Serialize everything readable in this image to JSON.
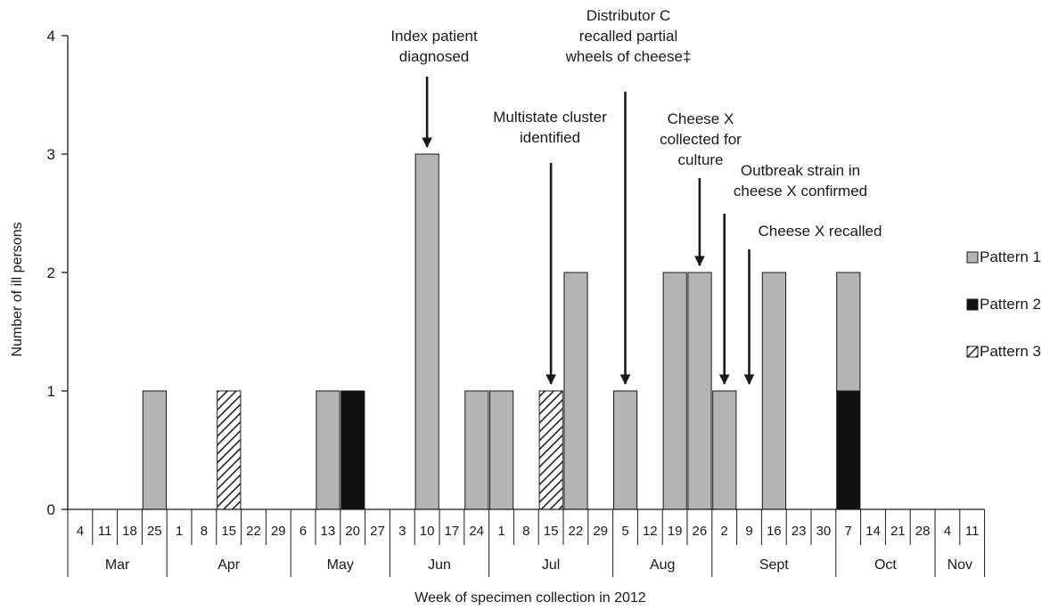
{
  "chart_data": {
    "type": "bar",
    "stacked": true,
    "xlabel": "Week of specimen collection in 2012",
    "ylabel": "Number of ill persons",
    "ylim": [
      0,
      4
    ],
    "yticks": [
      "0",
      "1",
      "2",
      "3",
      "4"
    ],
    "grid": false,
    "legend_position": "right",
    "categories": [
      "4",
      "11",
      "18",
      "25",
      "1",
      "8",
      "15",
      "22",
      "29",
      "6",
      "13",
      "20",
      "27",
      "3",
      "10",
      "17",
      "24",
      "1",
      "8",
      "15",
      "22",
      "29",
      "5",
      "12",
      "19",
      "26",
      "2",
      "9",
      "16",
      "23",
      "30",
      "7",
      "14",
      "21",
      "28",
      "4",
      "11"
    ],
    "months": [
      {
        "label": "Mar",
        "span": 4
      },
      {
        "label": "Apr",
        "span": 5
      },
      {
        "label": "May",
        "span": 4
      },
      {
        "label": "Jun",
        "span": 4
      },
      {
        "label": "Jul",
        "span": 5
      },
      {
        "label": "Aug",
        "span": 4
      },
      {
        "label": "Sept",
        "span": 5
      },
      {
        "label": "Oct",
        "span": 4
      },
      {
        "label": "Nov",
        "span": 2
      }
    ],
    "series": [
      {
        "name": "Pattern 2",
        "style": "solid-black",
        "values": [
          0,
          0,
          0,
          0,
          0,
          0,
          0,
          0,
          0,
          0,
          0,
          1,
          0,
          0,
          0,
          0,
          0,
          0,
          0,
          0,
          0,
          0,
          0,
          0,
          0,
          0,
          0,
          0,
          0,
          0,
          0,
          1,
          0,
          0,
          0,
          0,
          0
        ]
      },
      {
        "name": "Pattern 3",
        "style": "hatched",
        "values": [
          0,
          0,
          0,
          0,
          0,
          0,
          1,
          0,
          0,
          0,
          0,
          0,
          0,
          0,
          0,
          0,
          0,
          0,
          0,
          1,
          0,
          0,
          0,
          0,
          0,
          0,
          0,
          0,
          0,
          0,
          0,
          0,
          0,
          0,
          0,
          0,
          0
        ]
      },
      {
        "name": "Pattern 1",
        "style": "gray",
        "values": [
          0,
          0,
          0,
          1,
          0,
          0,
          0,
          0,
          0,
          0,
          1,
          0,
          0,
          0,
          3,
          0,
          1,
          1,
          0,
          0,
          2,
          0,
          1,
          0,
          2,
          2,
          1,
          0,
          2,
          0,
          0,
          1,
          0,
          0,
          0,
          0,
          0
        ]
      }
    ],
    "legend_order": [
      "Pattern 1",
      "Pattern 2",
      "Pattern 3"
    ],
    "annotations": [
      {
        "lines": [
          "Index patient",
          "diagnosed"
        ],
        "week_index": 14,
        "arrow_to_value": 3
      },
      {
        "lines": [
          "Multistate cluster",
          "identified"
        ],
        "week_index": 19,
        "arrow_to_value": 1
      },
      {
        "lines": [
          "Distributor C",
          "recalled partial",
          "wheels of cheese‡"
        ],
        "week_index": 22,
        "arrow_to_value": 1
      },
      {
        "lines": [
          "Cheese X",
          "collected for",
          "culture"
        ],
        "week_index": 25,
        "arrow_to_value": 2
      },
      {
        "lines": [
          "Outbreak strain in",
          "cheese X confirmed"
        ],
        "week_index": 26,
        "arrow_to_value": 1
      },
      {
        "lines": [
          "Cheese X recalled"
        ],
        "week_index": 27,
        "arrow_to_value": 1
      }
    ],
    "colors": {
      "Pattern 1": "#b4b4b4",
      "Pattern 2": "#111111",
      "Pattern 3": "hatched",
      "axis": "#1a1a1a"
    }
  }
}
